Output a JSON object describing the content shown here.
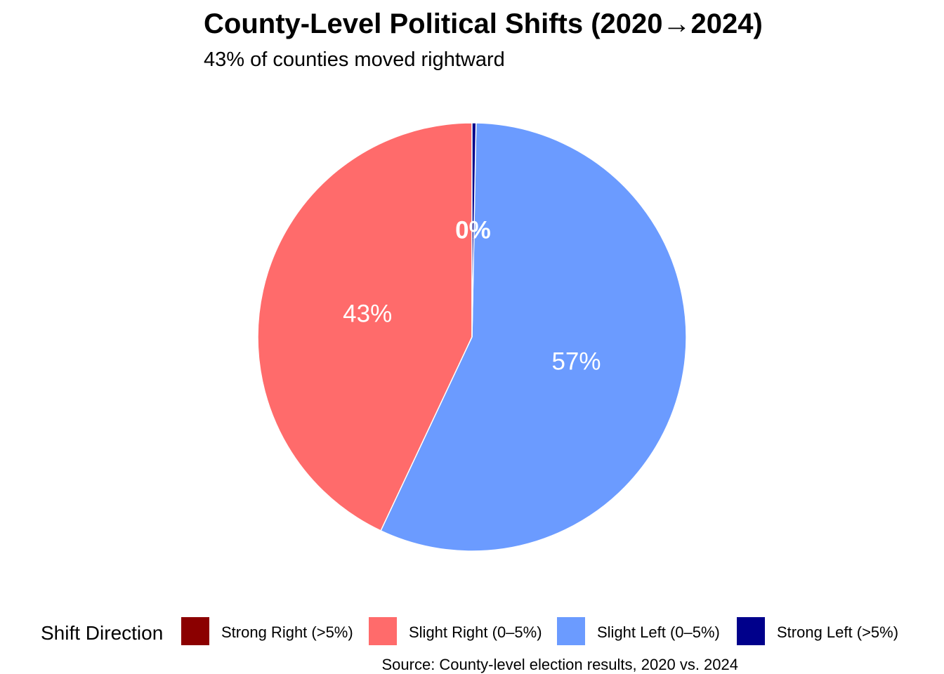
{
  "chart_data": {
    "type": "pie",
    "title": "County-Level Political Shifts (2020→2024)",
    "subtitle": "43% of counties moved rightward",
    "caption": "Source: County-level election results, 2020 vs. 2024",
    "legend_title": "Shift Direction",
    "legend_position": "bottom",
    "slices": [
      {
        "category": "Strong Right (>5%)",
        "value": 0.0,
        "label": "",
        "color": "#8B0000"
      },
      {
        "category": "Slight Right (0–5%)",
        "value": 43.0,
        "label": "43%",
        "color": "#FF6B6B"
      },
      {
        "category": "Slight Left (0–5%)",
        "value": 56.7,
        "label": "57%",
        "color": "#6B9BFF"
      },
      {
        "category": "Strong Left (>5%)",
        "value": 0.3,
        "label": "0%",
        "color": "#00008B"
      }
    ],
    "direction": "counterclockwise",
    "start_angle_deg": 0
  }
}
